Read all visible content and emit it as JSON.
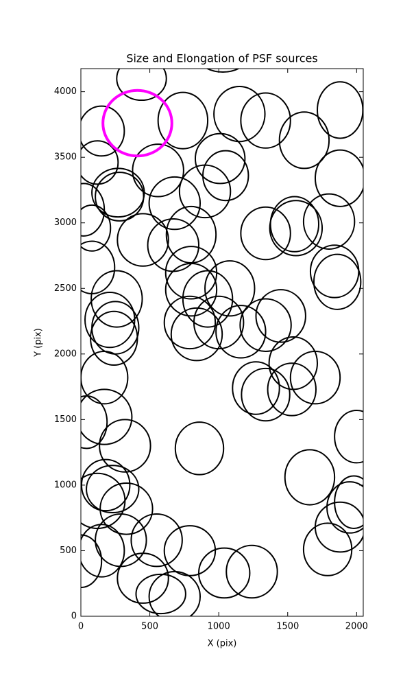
{
  "chart_data": {
    "type": "ellipse",
    "title": "Size and Elongation of PSF sources",
    "x_label": "X (pix)",
    "y_label": "Y (pix)",
    "xlim": [
      0,
      2048
    ],
    "ylim": [
      0,
      4176
    ],
    "xticks": [
      0,
      500,
      1000,
      1500,
      2000
    ],
    "yticks": [
      0,
      500,
      1000,
      1500,
      2000,
      2500,
      3000,
      3500,
      4000
    ],
    "grid": false,
    "series": [
      {
        "color": "#000000",
        "x": [
          1030,
          440,
          150,
          740,
          1150,
          1340,
          1880,
          1620,
          120,
          560,
          1010,
          1050,
          900,
          270,
          280,
          1880,
          680,
          20,
          80,
          450,
          1800,
          1550,
          1560,
          1340,
          800,
          670,
          80,
          1840,
          1860,
          800,
          800,
          1080,
          920,
          260,
          1450,
          1340,
          210,
          250,
          1000,
          1160,
          790,
          840,
          240,
          1540,
          170,
          1700,
          1270,
          1340,
          1530,
          170,
          40,
          2000,
          320,
          860,
          1660,
          180,
          230,
          120,
          330,
          1980,
          1950,
          1880,
          550,
          290,
          150,
          0,
          790,
          1790,
          1040,
          1240,
          450,
          580,
          680
        ],
        "values": [
          4300,
          4100,
          3700,
          3780,
          3830,
          3780,
          3860,
          3630,
          3460,
          3400,
          3490,
          3360,
          3240,
          3230,
          3200,
          3340,
          3150,
          3100,
          2960,
          2870,
          3010,
          2990,
          2960,
          2920,
          2910,
          2830,
          2660,
          2630,
          2550,
          2620,
          2490,
          2500,
          2420,
          2420,
          2290,
          2220,
          2260,
          2200,
          2240,
          2170,
          2240,
          2150,
          2120,
          1930,
          1820,
          1820,
          1740,
          1690,
          1730,
          1520,
          1480,
          1370,
          1300,
          1280,
          1060,
          1000,
          970,
          880,
          820,
          870,
          830,
          680,
          580,
          580,
          500,
          420,
          500,
          510,
          330,
          340,
          290,
          170,
          150
        ],
        "widths": [
          400,
          360,
          330,
          360,
          370,
          360,
          330,
          360,
          300,
          370,
          360,
          330,
          370,
          380,
          350,
          360,
          370,
          300,
          270,
          370,
          370,
          350,
          380,
          360,
          360,
          370,
          330,
          350,
          340,
          370,
          370,
          360,
          360,
          370,
          360,
          370,
          360,
          340,
          360,
          360,
          370,
          370,
          340,
          350,
          340,
          360,
          340,
          350,
          350,
          400,
          300,
          320,
          370,
          350,
          360,
          350,
          380,
          400,
          380,
          280,
          330,
          360,
          370,
          370,
          330,
          300,
          370,
          350,
          370,
          370,
          370,
          360,
          370
        ],
        "heights": [
          300,
          330,
          380,
          430,
          420,
          420,
          430,
          430,
          330,
          400,
          380,
          380,
          400,
          370,
          370,
          430,
          400,
          400,
          350,
          400,
          420,
          420,
          420,
          400,
          430,
          400,
          400,
          400,
          420,
          400,
          400,
          420,
          430,
          430,
          400,
          400,
          420,
          400,
          400,
          400,
          400,
          400,
          410,
          400,
          400,
          400,
          400,
          400,
          400,
          420,
          400,
          400,
          400,
          400,
          420,
          390,
          360,
          420,
          390,
          400,
          390,
          380,
          400,
          400,
          400,
          400,
          380,
          400,
          380,
          400,
          380,
          300,
          380
        ]
      },
      {
        "color": "#ff00ff",
        "x": [
          410
        ],
        "values": [
          3760
        ],
        "widths": [
          500
        ],
        "heights": [
          500
        ]
      }
    ]
  }
}
